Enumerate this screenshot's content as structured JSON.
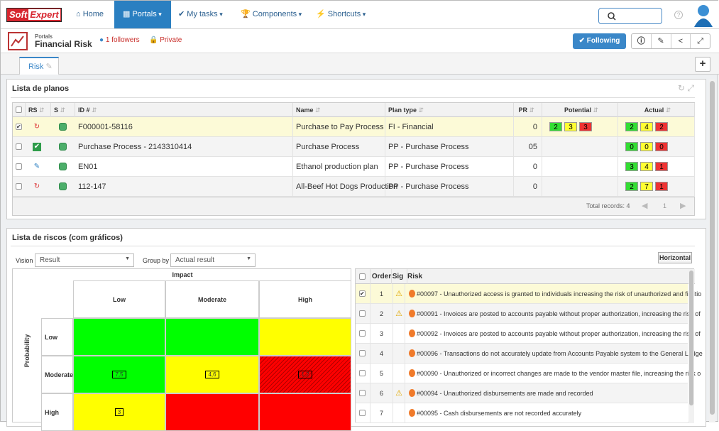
{
  "nav": {
    "logo": [
      "Soft",
      "Expert"
    ],
    "items": [
      "Home",
      "Portals",
      "My tasks",
      "Components",
      "Shortcuts"
    ]
  },
  "portal": {
    "section": "Portals",
    "title": "Financial Risk",
    "followers": "1 followers",
    "privacy": "Private",
    "follow_button": "Following"
  },
  "tabs": [
    "Risk"
  ],
  "plans": {
    "title": "Lista de planos",
    "columns": [
      "RS",
      "S",
      "ID #",
      "Name",
      "Plan type",
      "PR",
      "Potential",
      "Actual"
    ],
    "rows": [
      {
        "id": "F000001-58116",
        "name": "Purchase to Pay Process",
        "plan_type": "FI - Financial",
        "pr": "0",
        "potential": [
          "2",
          "3",
          "3"
        ],
        "actual": [
          "2",
          "4",
          "2"
        ]
      },
      {
        "id": "Purchase Process - 2143310414",
        "name": "Purchase Process",
        "plan_type": "PP - Purchase Process",
        "pr": "05",
        "potential": [],
        "actual": [
          "0",
          "0",
          "0"
        ]
      },
      {
        "id": "EN01",
        "name": "Ethanol production plan",
        "plan_type": "PP - Purchase Process",
        "pr": "0",
        "potential": [],
        "actual": [
          "3",
          "4",
          "1"
        ]
      },
      {
        "id": "112-147",
        "name": "All-Beef Hot Dogs Production",
        "plan_type": "PP - Purchase Process",
        "pr": "0",
        "potential": [],
        "actual": [
          "2",
          "7",
          "1"
        ]
      }
    ],
    "total": "Total records: 4",
    "page": "1"
  },
  "risks": {
    "title": "Lista de riscos (com gráficos)",
    "vision_label": "Vision",
    "vision": "Result",
    "group_label": "Group by",
    "group": "Actual result",
    "orientation_button": "Horizontal",
    "matrix": {
      "x_title": "Impact",
      "y_title": "Probability",
      "columns": [
        "Low",
        "Moderate",
        "High"
      ],
      "rows": [
        "Low",
        "Moderate",
        "High"
      ],
      "cells": [
        [
          null,
          null,
          null
        ],
        [
          "7,5",
          "4,6",
          "1,2"
        ],
        [
          "3",
          null,
          null
        ]
      ],
      "colors": [
        [
          "#00ff00",
          "#00ff00",
          "#ffff00"
        ],
        [
          "#00ff00",
          "#ffff00",
          "#ff0000"
        ],
        [
          "#ffff00",
          "#ff0000",
          "#ff0000"
        ]
      ]
    },
    "list": {
      "columns": [
        "Order",
        "Sig",
        "Risk"
      ],
      "rows": [
        {
          "order": "1",
          "text": "#00097 - Unauthorized access is granted to individuals increasing the risk of unauthorized and fictitio"
        },
        {
          "order": "2",
          "text": "#00091 - Invoices are posted to accounts payable without proper authorization, increasing the risk of"
        },
        {
          "order": "3",
          "text": "#00092 - Invoices are posted to accounts payable without proper authorization, increasing the risk of"
        },
        {
          "order": "4",
          "text": "#00096 - Transactions do not accurately update from Accounts Payable system to the General Ledge"
        },
        {
          "order": "5",
          "text": "#00090 - Unauthorized or incorrect changes are made to the vendor master file, increasing the risk o"
        },
        {
          "order": "6",
          "text": "#00094 - Unauthorized disbursements are made and recorded"
        },
        {
          "order": "7",
          "text": "#00095 - Cash disbursements are not recorded accurately"
        }
      ]
    }
  }
}
